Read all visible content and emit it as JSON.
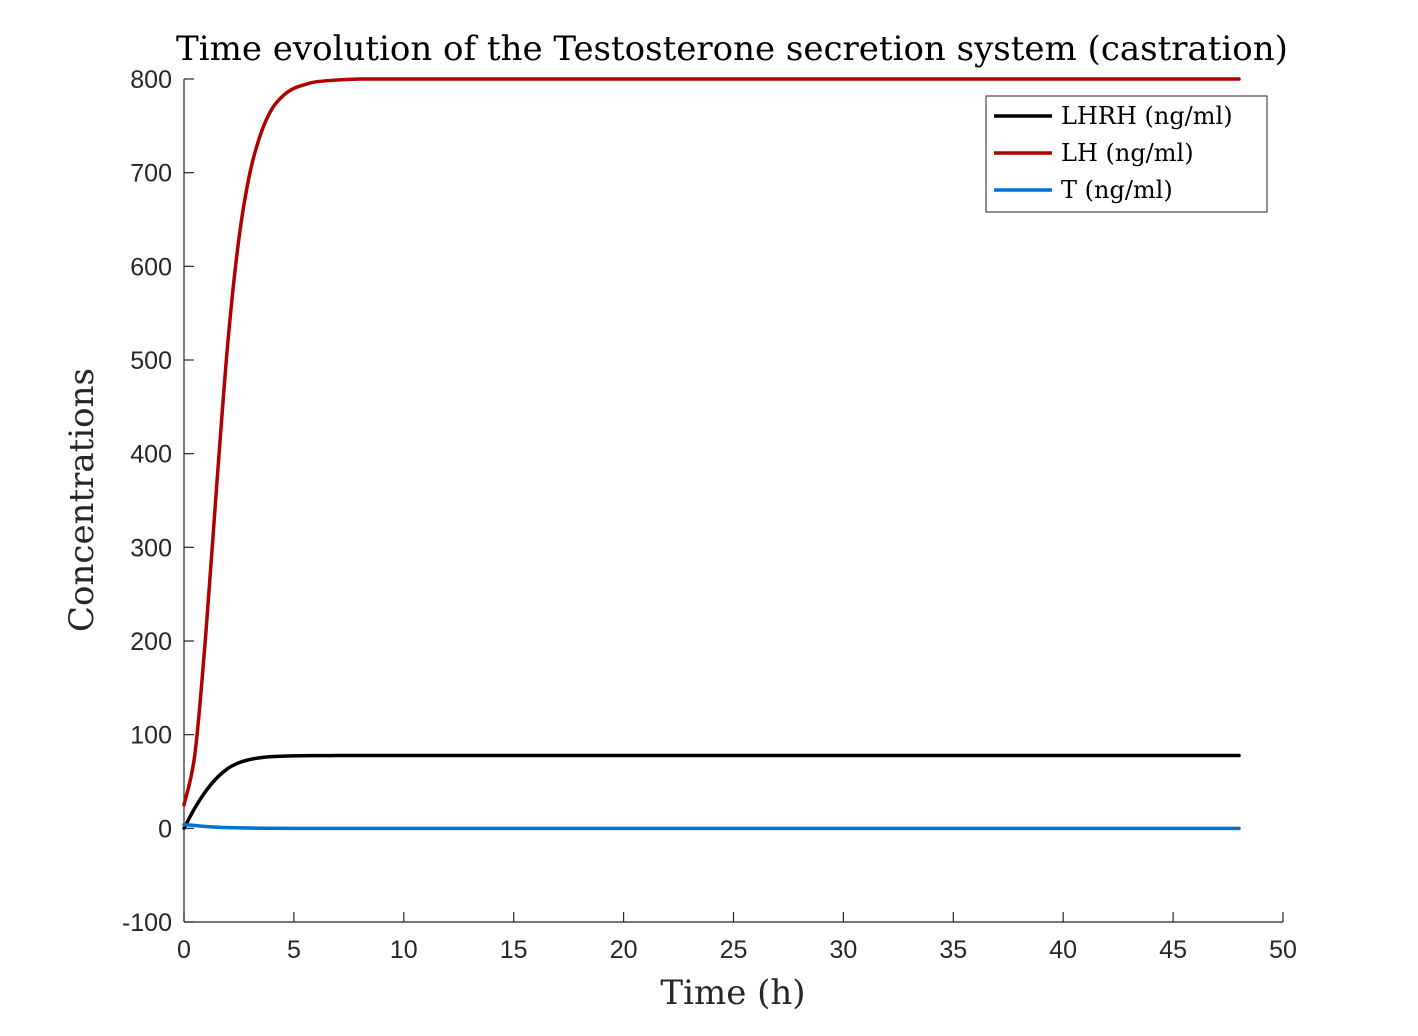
{
  "chart_data": {
    "type": "line",
    "title": "Time evolution of the Testosterone secretion system (castration)",
    "xlabel": "Time (h)",
    "ylabel": "Concentrations",
    "xlim": [
      0,
      50
    ],
    "ylim": [
      -100,
      800
    ],
    "xticks": [
      0,
      5,
      10,
      15,
      20,
      25,
      30,
      35,
      40,
      45,
      50
    ],
    "yticks": [
      -100,
      0,
      100,
      200,
      300,
      400,
      500,
      600,
      700,
      800
    ],
    "grid": false,
    "legend_position": "top-right",
    "series": [
      {
        "name": "LHRH (ng/ml)",
        "color": "#000000",
        "x": [
          0,
          0.5,
          1,
          1.5,
          2,
          2.5,
          3,
          3.5,
          4,
          5,
          6,
          7,
          8,
          10,
          15,
          20,
          30,
          40,
          48
        ],
        "y": [
          0,
          22,
          40,
          54,
          64,
          70,
          73.5,
          75.5,
          76.5,
          77.3,
          77.6,
          77.7,
          77.8,
          77.8,
          77.8,
          77.8,
          77.8,
          77.8,
          77.8
        ]
      },
      {
        "name": "LH (ng/ml)",
        "color": "#b00000",
        "x": [
          0,
          0.5,
          1,
          1.5,
          2,
          2.5,
          3,
          3.5,
          4,
          4.5,
          5,
          5.5,
          6,
          7,
          8,
          9,
          10,
          12,
          15,
          20,
          30,
          40,
          48
        ],
        "y": [
          25,
          80,
          210,
          370,
          520,
          630,
          700,
          742,
          768,
          782,
          790,
          794,
          797,
          799,
          800,
          800,
          800,
          800,
          800,
          800,
          800,
          800,
          800
        ]
      },
      {
        "name": "T (ng/ml)",
        "color": "#0072d4",
        "x": [
          0,
          0.5,
          1,
          1.5,
          2,
          3,
          4,
          5,
          10,
          20,
          30,
          40,
          48
        ],
        "y": [
          4,
          3,
          2,
          1.3,
          0.8,
          0.3,
          0.1,
          0,
          0,
          0,
          0,
          0,
          0
        ]
      }
    ]
  }
}
